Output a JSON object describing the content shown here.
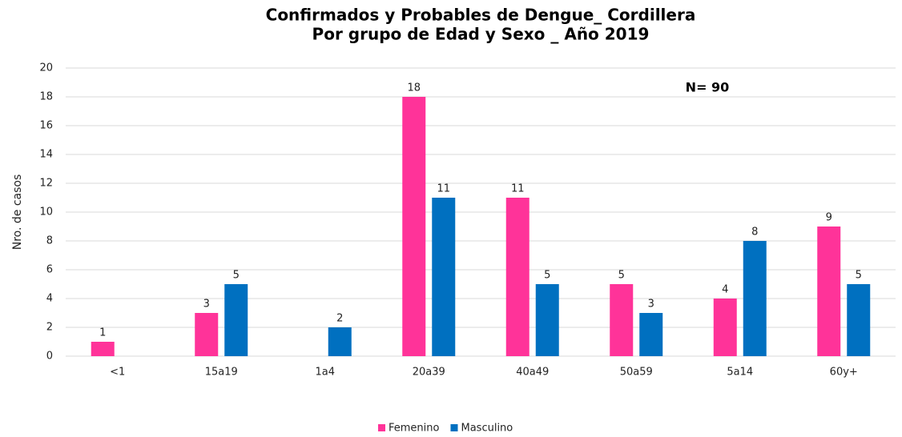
{
  "chart_data": {
    "type": "bar",
    "title": [
      "Confirmados y Probables de Dengue_ Cordillera",
      "Por grupo de Edad y Sexo _ Año 2019"
    ],
    "y_label": "Nro. de casos",
    "annotation": "N= 90",
    "categories": [
      "<1",
      "15a19",
      "1a4",
      "20a39",
      "40a49",
      "50a59",
      "5a14",
      "60y+"
    ],
    "series": [
      {
        "name": "Femenino",
        "color": "#ff3399",
        "values": [
          1,
          3,
          null,
          18,
          11,
          5,
          4,
          9
        ]
      },
      {
        "name": "Masculino",
        "color": "#0070c0",
        "values": [
          null,
          5,
          2,
          11,
          5,
          3,
          8,
          5
        ]
      }
    ],
    "ylim": [
      0,
      20
    ],
    "yticks": [
      0,
      2,
      4,
      6,
      8,
      10,
      12,
      14,
      16,
      18,
      20
    ],
    "grid": true,
    "legend": "bottom"
  }
}
